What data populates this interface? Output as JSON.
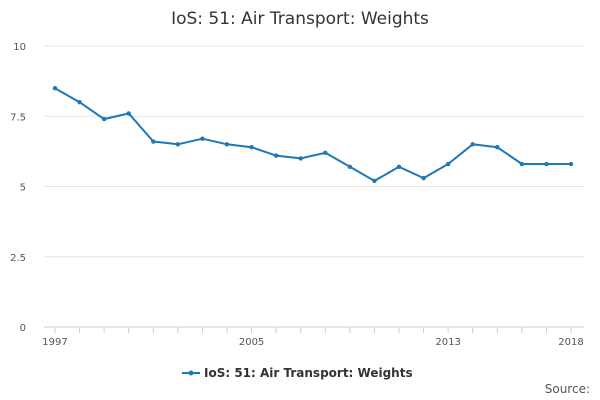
{
  "chart_data": {
    "type": "line",
    "title": "IoS: 51: Air Transport: Weights",
    "xlabel": "",
    "ylabel": "",
    "x": [
      1997,
      1998,
      1999,
      2000,
      2001,
      2002,
      2003,
      2004,
      2005,
      2006,
      2007,
      2008,
      2009,
      2010,
      2011,
      2012,
      2013,
      2014,
      2015,
      2016,
      2017,
      2018
    ],
    "x_tick_labels": [
      "1997",
      "2005",
      "2013",
      "2018"
    ],
    "y_tick_labels": [
      "0",
      "2.5",
      "5",
      "7.5",
      "10"
    ],
    "ylim": [
      0,
      10
    ],
    "grid": "horizontal",
    "legend_position": "bottom",
    "series": [
      {
        "name": "IoS: 51: Air Transport: Weights",
        "color": "#1f77b4",
        "values": [
          8.5,
          8.0,
          7.4,
          7.6,
          6.6,
          6.5,
          6.7,
          6.5,
          6.4,
          6.1,
          6.0,
          6.2,
          5.7,
          5.2,
          5.7,
          5.3,
          5.8,
          6.5,
          6.4,
          5.8,
          5.8,
          5.8
        ]
      }
    ]
  },
  "footer": {
    "source_label": "Source:"
  }
}
